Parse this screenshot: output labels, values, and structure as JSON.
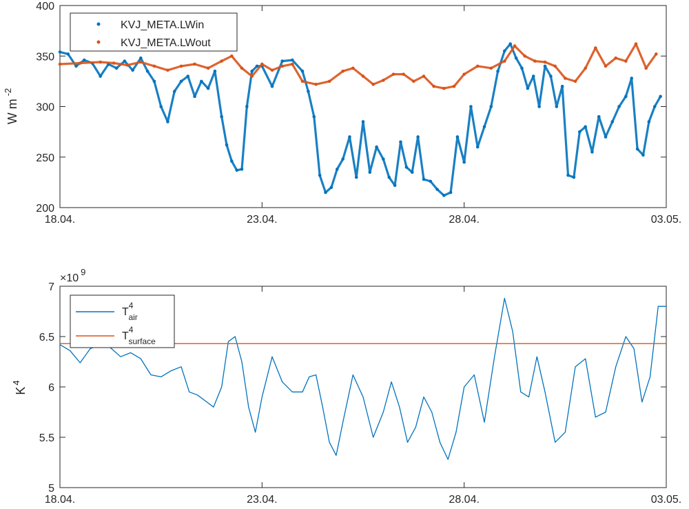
{
  "chart_data": [
    {
      "type": "scatter",
      "ylabel": "W m",
      "ylabel_exponent": "-2",
      "ylim": [
        200,
        400
      ],
      "xlim": [
        "18.04.",
        "03.05."
      ],
      "yticks": [
        "200",
        "250",
        "300",
        "350",
        "400"
      ],
      "xticks": [
        "18.04.",
        "23.04.",
        "28.04.",
        "03.05."
      ],
      "legend_location": "top-left",
      "series": [
        {
          "name": "KVJ_META.LWin",
          "color": "#0072BD",
          "points": [
            [
              "18.04.",
              354
            ],
            [
              "18.04.",
              352
            ],
            [
              "18.04.",
              340
            ],
            [
              "18.04.",
              346
            ],
            [
              "18.04.",
              343
            ],
            [
              "19.04.",
              330
            ],
            [
              "19.04.",
              342
            ],
            [
              "19.04.",
              338
            ],
            [
              "19.04.",
              345
            ],
            [
              "19.04.",
              336
            ],
            [
              "20.04.",
              348
            ],
            [
              "20.04.",
              335
            ],
            [
              "20.04.",
              325
            ],
            [
              "20.04.",
              300
            ],
            [
              "20.04.",
              285
            ],
            [
              "20.04.",
              315
            ],
            [
              "21.04.",
              325
            ],
            [
              "21.04.",
              330
            ],
            [
              "21.04.",
              310
            ],
            [
              "21.04.",
              325
            ],
            [
              "21.04.",
              318
            ],
            [
              "21.04.",
              335
            ],
            [
              "22.04.",
              290
            ],
            [
              "22.04.",
              262
            ],
            [
              "22.04.",
              246
            ],
            [
              "22.04.",
              237
            ],
            [
              "22.04.",
              238
            ],
            [
              "22.04.",
              300
            ],
            [
              "22.04.",
              335
            ],
            [
              "22.04.",
              340
            ],
            [
              "23.04.",
              340
            ],
            [
              "23.04.",
              320
            ],
            [
              "23.04.",
              345
            ],
            [
              "23.04.",
              346
            ],
            [
              "24.04.",
              335
            ],
            [
              "24.04.",
              315
            ],
            [
              "24.04.",
              290
            ],
            [
              "24.04.",
              232
            ],
            [
              "24.04.",
              215
            ],
            [
              "24.04.",
              220
            ],
            [
              "24.04.",
              238
            ],
            [
              "25.04.",
              248
            ],
            [
              "25.04.",
              270
            ],
            [
              "25.04.",
              230
            ],
            [
              "25.04.",
              285
            ],
            [
              "25.04.",
              235
            ],
            [
              "25.04.",
              260
            ],
            [
              "26.04.",
              248
            ],
            [
              "26.04.",
              230
            ],
            [
              "26.04.",
              222
            ],
            [
              "26.04.",
              265
            ],
            [
              "26.04.",
              240
            ],
            [
              "26.04.",
              235
            ],
            [
              "26.04.",
              270
            ],
            [
              "27.04.",
              228
            ],
            [
              "27.04.",
              226
            ],
            [
              "27.04.",
              218
            ],
            [
              "27.04.",
              212
            ],
            [
              "27.04.",
              215
            ],
            [
              "27.04.",
              270
            ],
            [
              "28.04.",
              245
            ],
            [
              "28.04.",
              300
            ],
            [
              "28.04.",
              260
            ],
            [
              "28.04.",
              280
            ],
            [
              "28.04.",
              300
            ],
            [
              "28.04.",
              335
            ],
            [
              "29.04.",
              355
            ],
            [
              "29.04.",
              362
            ],
            [
              "29.04.",
              348
            ],
            [
              "29.04.",
              338
            ],
            [
              "29.04.",
              318
            ],
            [
              "29.04.",
              330
            ],
            [
              "29.04.",
              300
            ],
            [
              "30.04.",
              340
            ],
            [
              "30.04.",
              330
            ],
            [
              "30.04.",
              300
            ],
            [
              "30.04.",
              320
            ],
            [
              "30.04.",
              232
            ],
            [
              "30.04.",
              230
            ],
            [
              "30.04.",
              275
            ],
            [
              "01.05.",
              280
            ],
            [
              "01.05.",
              255
            ],
            [
              "01.05.",
              290
            ],
            [
              "01.05.",
              270
            ],
            [
              "01.05.",
              285
            ],
            [
              "01.05.",
              300
            ],
            [
              "02.05.",
              310
            ],
            [
              "02.05.",
              328
            ],
            [
              "02.05.",
              258
            ],
            [
              "02.05.",
              252
            ],
            [
              "02.05.",
              285
            ],
            [
              "02.05.",
              300
            ],
            [
              "02.05.",
              310
            ]
          ]
        },
        {
          "name": "KVJ_META.LWout",
          "color": "#D95319",
          "points": [
            [
              "18.04.",
              342
            ],
            [
              "18.04.",
              343
            ],
            [
              "19.04.",
              344
            ],
            [
              "19.04.",
              343
            ],
            [
              "19.04.",
              341
            ],
            [
              "20.04.",
              344
            ],
            [
              "20.04.",
              340
            ],
            [
              "20.04.",
              336
            ],
            [
              "21.04.",
              340
            ],
            [
              "21.04.",
              342
            ],
            [
              "21.04.",
              338
            ],
            [
              "22.04.",
              345
            ],
            [
              "22.04.",
              350
            ],
            [
              "22.04.",
              338
            ],
            [
              "22.04.",
              330
            ],
            [
              "23.04.",
              342
            ],
            [
              "23.04.",
              336
            ],
            [
              "23.04.",
              340
            ],
            [
              "23.04.",
              342
            ],
            [
              "24.04.",
              325
            ],
            [
              "24.04.",
              322
            ],
            [
              "24.04.",
              325
            ],
            [
              "25.04.",
              335
            ],
            [
              "25.04.",
              338
            ],
            [
              "25.04.",
              330
            ],
            [
              "25.04.",
              322
            ],
            [
              "26.04.",
              326
            ],
            [
              "26.04.",
              332
            ],
            [
              "26.04.",
              332
            ],
            [
              "26.04.",
              325
            ],
            [
              "27.04.",
              330
            ],
            [
              "27.04.",
              320
            ],
            [
              "27.04.",
              318
            ],
            [
              "27.04.",
              320
            ],
            [
              "28.04.",
              332
            ],
            [
              "28.04.",
              340
            ],
            [
              "28.04.",
              338
            ],
            [
              "29.04.",
              345
            ],
            [
              "29.04.",
              360
            ],
            [
              "29.04.",
              350
            ],
            [
              "29.04.",
              345
            ],
            [
              "30.04.",
              344
            ],
            [
              "30.04.",
              340
            ],
            [
              "30.04.",
              328
            ],
            [
              "30.04.",
              325
            ],
            [
              "01.05.",
              338
            ],
            [
              "01.05.",
              358
            ],
            [
              "01.05.",
              340
            ],
            [
              "01.05.",
              348
            ],
            [
              "02.05.",
              345
            ],
            [
              "02.05.",
              362
            ],
            [
              "02.05.",
              338
            ],
            [
              "02.05.",
              352
            ]
          ]
        }
      ]
    },
    {
      "type": "line",
      "ylabel": "K",
      "ylabel_exponent": "4",
      "y_multiplier_label": "×10",
      "y_multiplier_exponent": "9",
      "ylim": [
        5,
        7
      ],
      "xlim": [
        "18.04.",
        "03.05."
      ],
      "yticks": [
        "5",
        "5.5",
        "6",
        "6.5",
        "7"
      ],
      "xticks": [
        "18.04.",
        "23.04.",
        "28.04.",
        "03.05."
      ],
      "legend_location": "top-left",
      "series": [
        {
          "name": "T",
          "name_sup": "4",
          "name_sub": "air",
          "color": "#0072BD",
          "points": [
            [
              "18.04.",
              6.42
            ],
            [
              "18.04.",
              6.36
            ],
            [
              "18.04.",
              6.24
            ],
            [
              "18.04.",
              6.38
            ],
            [
              "19.04.",
              6.42
            ],
            [
              "19.04.",
              6.39
            ],
            [
              "19.04.",
              6.3
            ],
            [
              "19.04.",
              6.34
            ],
            [
              "20.04.",
              6.28
            ],
            [
              "20.04.",
              6.12
            ],
            [
              "20.04.",
              6.1
            ],
            [
              "20.04.",
              6.16
            ],
            [
              "21.04.",
              6.2
            ],
            [
              "21.04.",
              5.95
            ],
            [
              "21.04.",
              5.92
            ],
            [
              "21.04.",
              5.86
            ],
            [
              "21.04.",
              5.8
            ],
            [
              "22.04.",
              6.0
            ],
            [
              "22.04.",
              6.45
            ],
            [
              "22.04.",
              6.5
            ],
            [
              "22.04.",
              6.25
            ],
            [
              "22.04.",
              5.8
            ],
            [
              "22.04.",
              5.55
            ],
            [
              "23.04.",
              5.9
            ],
            [
              "23.04.",
              6.3
            ],
            [
              "23.04.",
              6.05
            ],
            [
              "23.04.",
              5.95
            ],
            [
              "24.04.",
              5.95
            ],
            [
              "24.04.",
              6.1
            ],
            [
              "24.04.",
              6.12
            ],
            [
              "24.04.",
              5.8
            ],
            [
              "24.04.",
              5.45
            ],
            [
              "24.04.",
              5.32
            ],
            [
              "25.04.",
              5.65
            ],
            [
              "25.04.",
              6.12
            ],
            [
              "25.04.",
              5.9
            ],
            [
              "25.04.",
              5.5
            ],
            [
              "26.04.",
              5.75
            ],
            [
              "26.04.",
              6.05
            ],
            [
              "26.04.",
              5.8
            ],
            [
              "26.04.",
              5.45
            ],
            [
              "26.04.",
              5.6
            ],
            [
              "27.04.",
              5.9
            ],
            [
              "27.04.",
              5.75
            ],
            [
              "27.04.",
              5.45
            ],
            [
              "27.04.",
              5.28
            ],
            [
              "27.04.",
              5.55
            ],
            [
              "28.04.",
              6.0
            ],
            [
              "28.04.",
              6.12
            ],
            [
              "28.04.",
              5.65
            ],
            [
              "28.04.",
              6.3
            ],
            [
              "29.04.",
              6.88
            ],
            [
              "29.04.",
              6.55
            ],
            [
              "29.04.",
              5.95
            ],
            [
              "29.04.",
              5.9
            ],
            [
              "29.04.",
              6.3
            ],
            [
              "30.04.",
              5.95
            ],
            [
              "30.04.",
              5.45
            ],
            [
              "30.04.",
              5.55
            ],
            [
              "30.04.",
              6.2
            ],
            [
              "01.05.",
              6.28
            ],
            [
              "01.05.",
              5.7
            ],
            [
              "01.05.",
              5.75
            ],
            [
              "01.05.",
              6.2
            ],
            [
              "02.05.",
              6.5
            ],
            [
              "02.05.",
              6.38
            ],
            [
              "02.05.",
              5.85
            ],
            [
              "02.05.",
              6.1
            ],
            [
              "02.05.",
              6.8
            ],
            [
              "03.05.",
              6.8
            ]
          ]
        },
        {
          "name": "T",
          "name_sup": "4",
          "name_sub": "surface",
          "color": "#D95319",
          "points": [
            [
              "18.04.",
              6.43
            ],
            [
              "03.05.",
              6.43
            ]
          ]
        }
      ]
    }
  ]
}
